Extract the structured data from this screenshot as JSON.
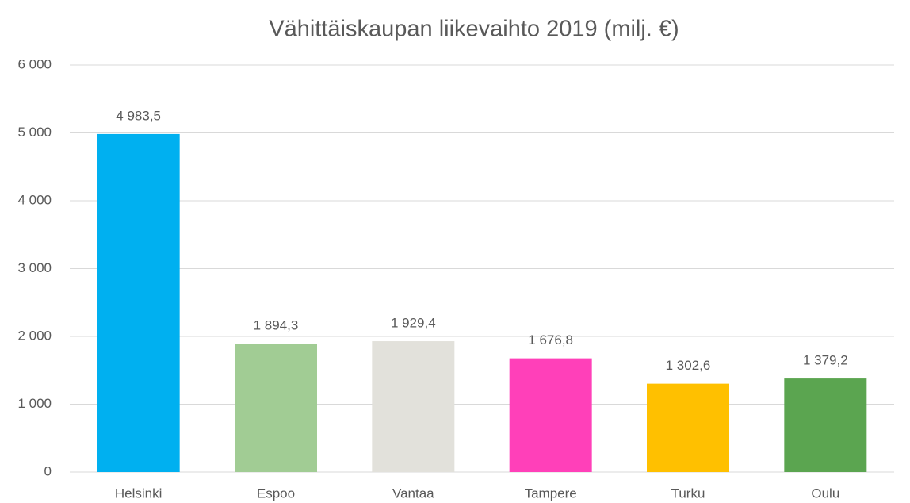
{
  "chart_data": {
    "type": "bar",
    "title": "Vähittäiskaupan liikevaihto 2019 (milj. €)",
    "categories": [
      "Helsinki",
      "Espoo",
      "Vantaa",
      "Tampere",
      "Turku",
      "Oulu"
    ],
    "values": [
      4983.5,
      1894.3,
      1929.4,
      1676.8,
      1302.6,
      1379.2
    ],
    "value_labels": [
      "4 983,5",
      "1 894,3",
      "1 929,4",
      "1 676,8",
      "1 302,6",
      "1 379,2"
    ],
    "colors": [
      "#00b0f0",
      "#a1cc94",
      "#e2e1db",
      "#ff40b9",
      "#ffc000",
      "#5ba550"
    ],
    "ylim": [
      0,
      6000
    ],
    "yticks": [
      0,
      {
        "value": 1000,
        "label": "1 000"
      },
      {
        "value": 2000,
        "label": "2 000"
      },
      {
        "value": 3000,
        "label": "3 000"
      },
      {
        "value": 4000,
        "label": "4 000"
      },
      {
        "value": 5000,
        "label": "5 000"
      },
      {
        "value": 6000,
        "label": "6 000"
      }
    ],
    "grid": true
  }
}
